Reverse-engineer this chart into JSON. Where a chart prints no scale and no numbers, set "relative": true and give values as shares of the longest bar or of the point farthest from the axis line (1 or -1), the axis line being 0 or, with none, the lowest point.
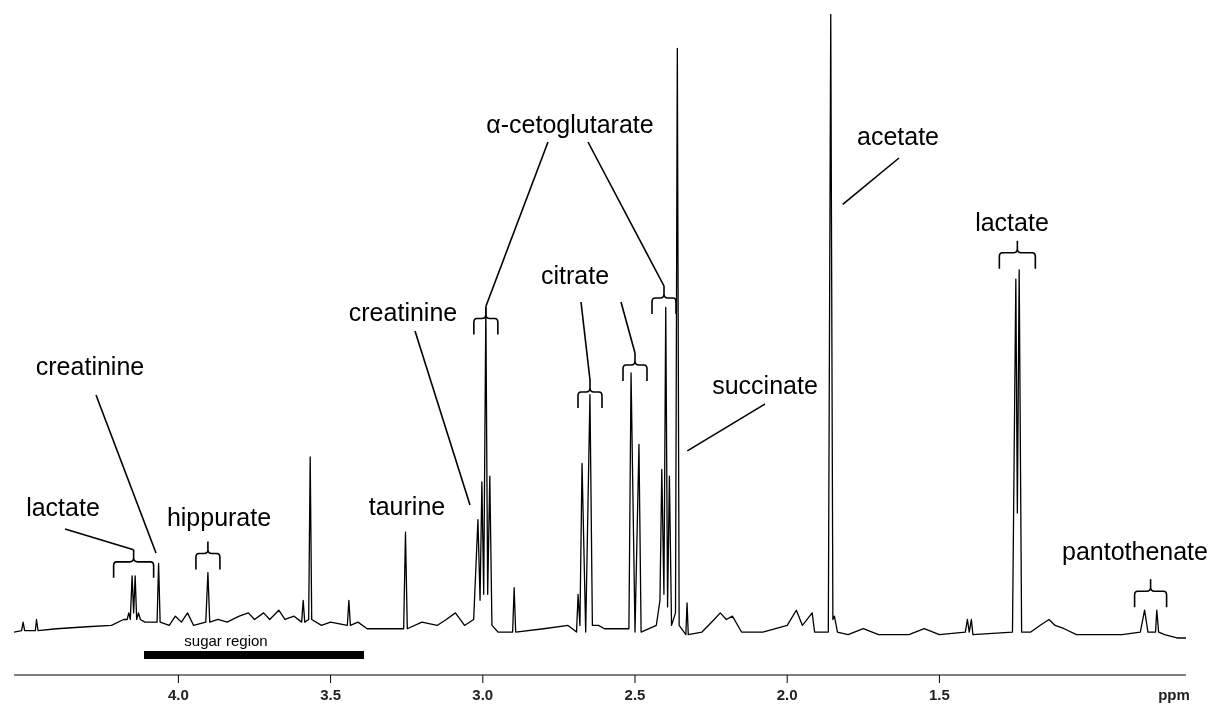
{
  "chart_data": {
    "type": "line",
    "relative": true,
    "xlabel": "ppm",
    "marker": "none",
    "line_style": "solid",
    "xlim": [
      4.54,
      0.69
    ],
    "xticks": [
      {
        "value": 4.0,
        "label": "4.0"
      },
      3.5,
      {
        "value": 3.0,
        "label": "3.0"
      },
      2.5,
      {
        "value": 2.0,
        "label": "2.0"
      },
      1.5
    ],
    "series": [
      {
        "color": "#000000",
        "x": [
          4.54,
          4.515,
          4.51,
          4.505,
          4.47,
          4.466,
          4.461,
          4.4,
          4.3,
          4.22,
          4.18,
          4.168,
          4.163,
          4.158,
          4.152,
          4.147,
          4.142,
          4.137,
          4.131,
          4.125,
          4.11,
          4.07,
          4.065,
          4.06,
          4.03,
          4.01,
          3.99,
          3.97,
          3.95,
          3.91,
          3.903,
          3.897,
          3.87,
          3.84,
          3.8,
          3.77,
          3.75,
          3.72,
          3.7,
          3.67,
          3.65,
          3.62,
          3.595,
          3.59,
          3.585,
          3.572,
          3.567,
          3.562,
          3.53,
          3.5,
          3.445,
          3.44,
          3.435,
          3.41,
          3.38,
          3.3,
          3.26,
          3.254,
          3.248,
          3.2,
          3.15,
          3.12,
          3.09,
          3.06,
          3.03,
          3.016,
          3.009,
          3.003,
          2.997,
          2.99,
          2.984,
          2.977,
          2.97,
          2.95,
          2.902,
          2.897,
          2.892,
          2.8,
          2.72,
          2.692,
          2.687,
          2.681,
          2.674,
          2.662,
          2.648,
          2.64,
          2.62,
          2.6,
          2.52,
          2.513,
          2.5,
          2.487,
          2.48,
          2.43,
          2.418,
          2.412,
          2.405,
          2.399,
          2.393,
          2.387,
          2.38,
          2.367,
          2.361,
          2.355,
          2.333,
          2.329,
          2.325,
          2.28,
          2.24,
          2.22,
          2.2,
          2.18,
          2.15,
          2.08,
          2.0,
          1.97,
          1.95,
          1.918,
          1.91,
          1.865,
          1.857,
          1.85,
          1.845,
          1.835,
          1.8,
          1.75,
          1.7,
          1.6,
          1.55,
          1.5,
          1.415,
          1.408,
          1.402,
          1.395,
          1.39,
          1.26,
          1.249,
          1.244,
          1.238,
          1.23,
          1.2,
          1.17,
          1.14,
          1.12,
          1.09,
          1.05,
          1.0,
          0.9,
          0.84,
          0.826,
          0.815,
          0.79,
          0.786,
          0.78,
          0.76,
          0.72,
          0.69
        ],
        "values": [
          0.065,
          0.067,
          0.08,
          0.067,
          0.067,
          0.084,
          0.067,
          0.07,
          0.073,
          0.075,
          0.084,
          0.084,
          0.094,
          0.084,
          0.15,
          0.094,
          0.15,
          0.084,
          0.094,
          0.084,
          0.08,
          0.08,
          0.169,
          0.08,
          0.075,
          0.089,
          0.08,
          0.094,
          0.075,
          0.08,
          0.155,
          0.08,
          0.084,
          0.08,
          0.089,
          0.094,
          0.084,
          0.094,
          0.084,
          0.098,
          0.084,
          0.089,
          0.08,
          0.113,
          0.08,
          0.084,
          0.33,
          0.084,
          0.075,
          0.08,
          0.075,
          0.113,
          0.075,
          0.08,
          0.07,
          0.07,
          0.07,
          0.216,
          0.07,
          0.08,
          0.075,
          0.084,
          0.094,
          0.075,
          0.084,
          0.235,
          0.113,
          0.292,
          0.122,
          0.556,
          0.122,
          0.301,
          0.075,
          0.065,
          0.065,
          0.132,
          0.065,
          0.07,
          0.075,
          0.065,
          0.122,
          0.075,
          0.32,
          0.065,
          0.424,
          0.075,
          0.075,
          0.07,
          0.07,
          0.457,
          0.065,
          0.349,
          0.065,
          0.075,
          0.113,
          0.311,
          0.122,
          0.556,
          0.103,
          0.301,
          0.075,
          0.094,
          0.948,
          0.075,
          0.061,
          0.109,
          0.061,
          0.065,
          0.084,
          0.094,
          0.084,
          0.089,
          0.065,
          0.065,
          0.075,
          0.098,
          0.075,
          0.094,
          0.065,
          0.065,
          1,
          0.084,
          0.089,
          0.065,
          0.061,
          0.07,
          0.061,
          0.061,
          0.07,
          0.061,
          0.065,
          0.084,
          0.065,
          0.084,
          0.061,
          0.065,
          0.599,
          0.245,
          0.613,
          0.065,
          0.065,
          0.075,
          0.084,
          0.075,
          0.07,
          0.061,
          0.061,
          0.061,
          0.065,
          0.098,
          0.065,
          0.065,
          0.098,
          0.065,
          0.061,
          0.056,
          0.056
        ]
      }
    ],
    "annotations": [
      {
        "text": "lactate",
        "x": 4.147,
        "y": 0.15
      },
      "creatinine",
      {
        "text": "hippurate",
        "x": 3.903,
        "y": 0.155
      },
      {
        "text": "taurine",
        "x": 3.254,
        "y": 0.216
      },
      "creatinine",
      {
        "text": "α-cetoglutarate",
        "x": 2.99,
        "y": 0.556
      },
      "citrate",
      {
        "text": "succinate",
        "x": 2.361,
        "y": 0.339
      },
      {
        "text": "acetate",
        "x": 1.857,
        "y": 0.712
      },
      {
        "text": "lactate",
        "x": 1.244,
        "y": 0.613
      },
      {
        "text": "pantothenate",
        "x": 0.826,
        "y": 0.098
      },
      "sugar region"
    ]
  }
}
